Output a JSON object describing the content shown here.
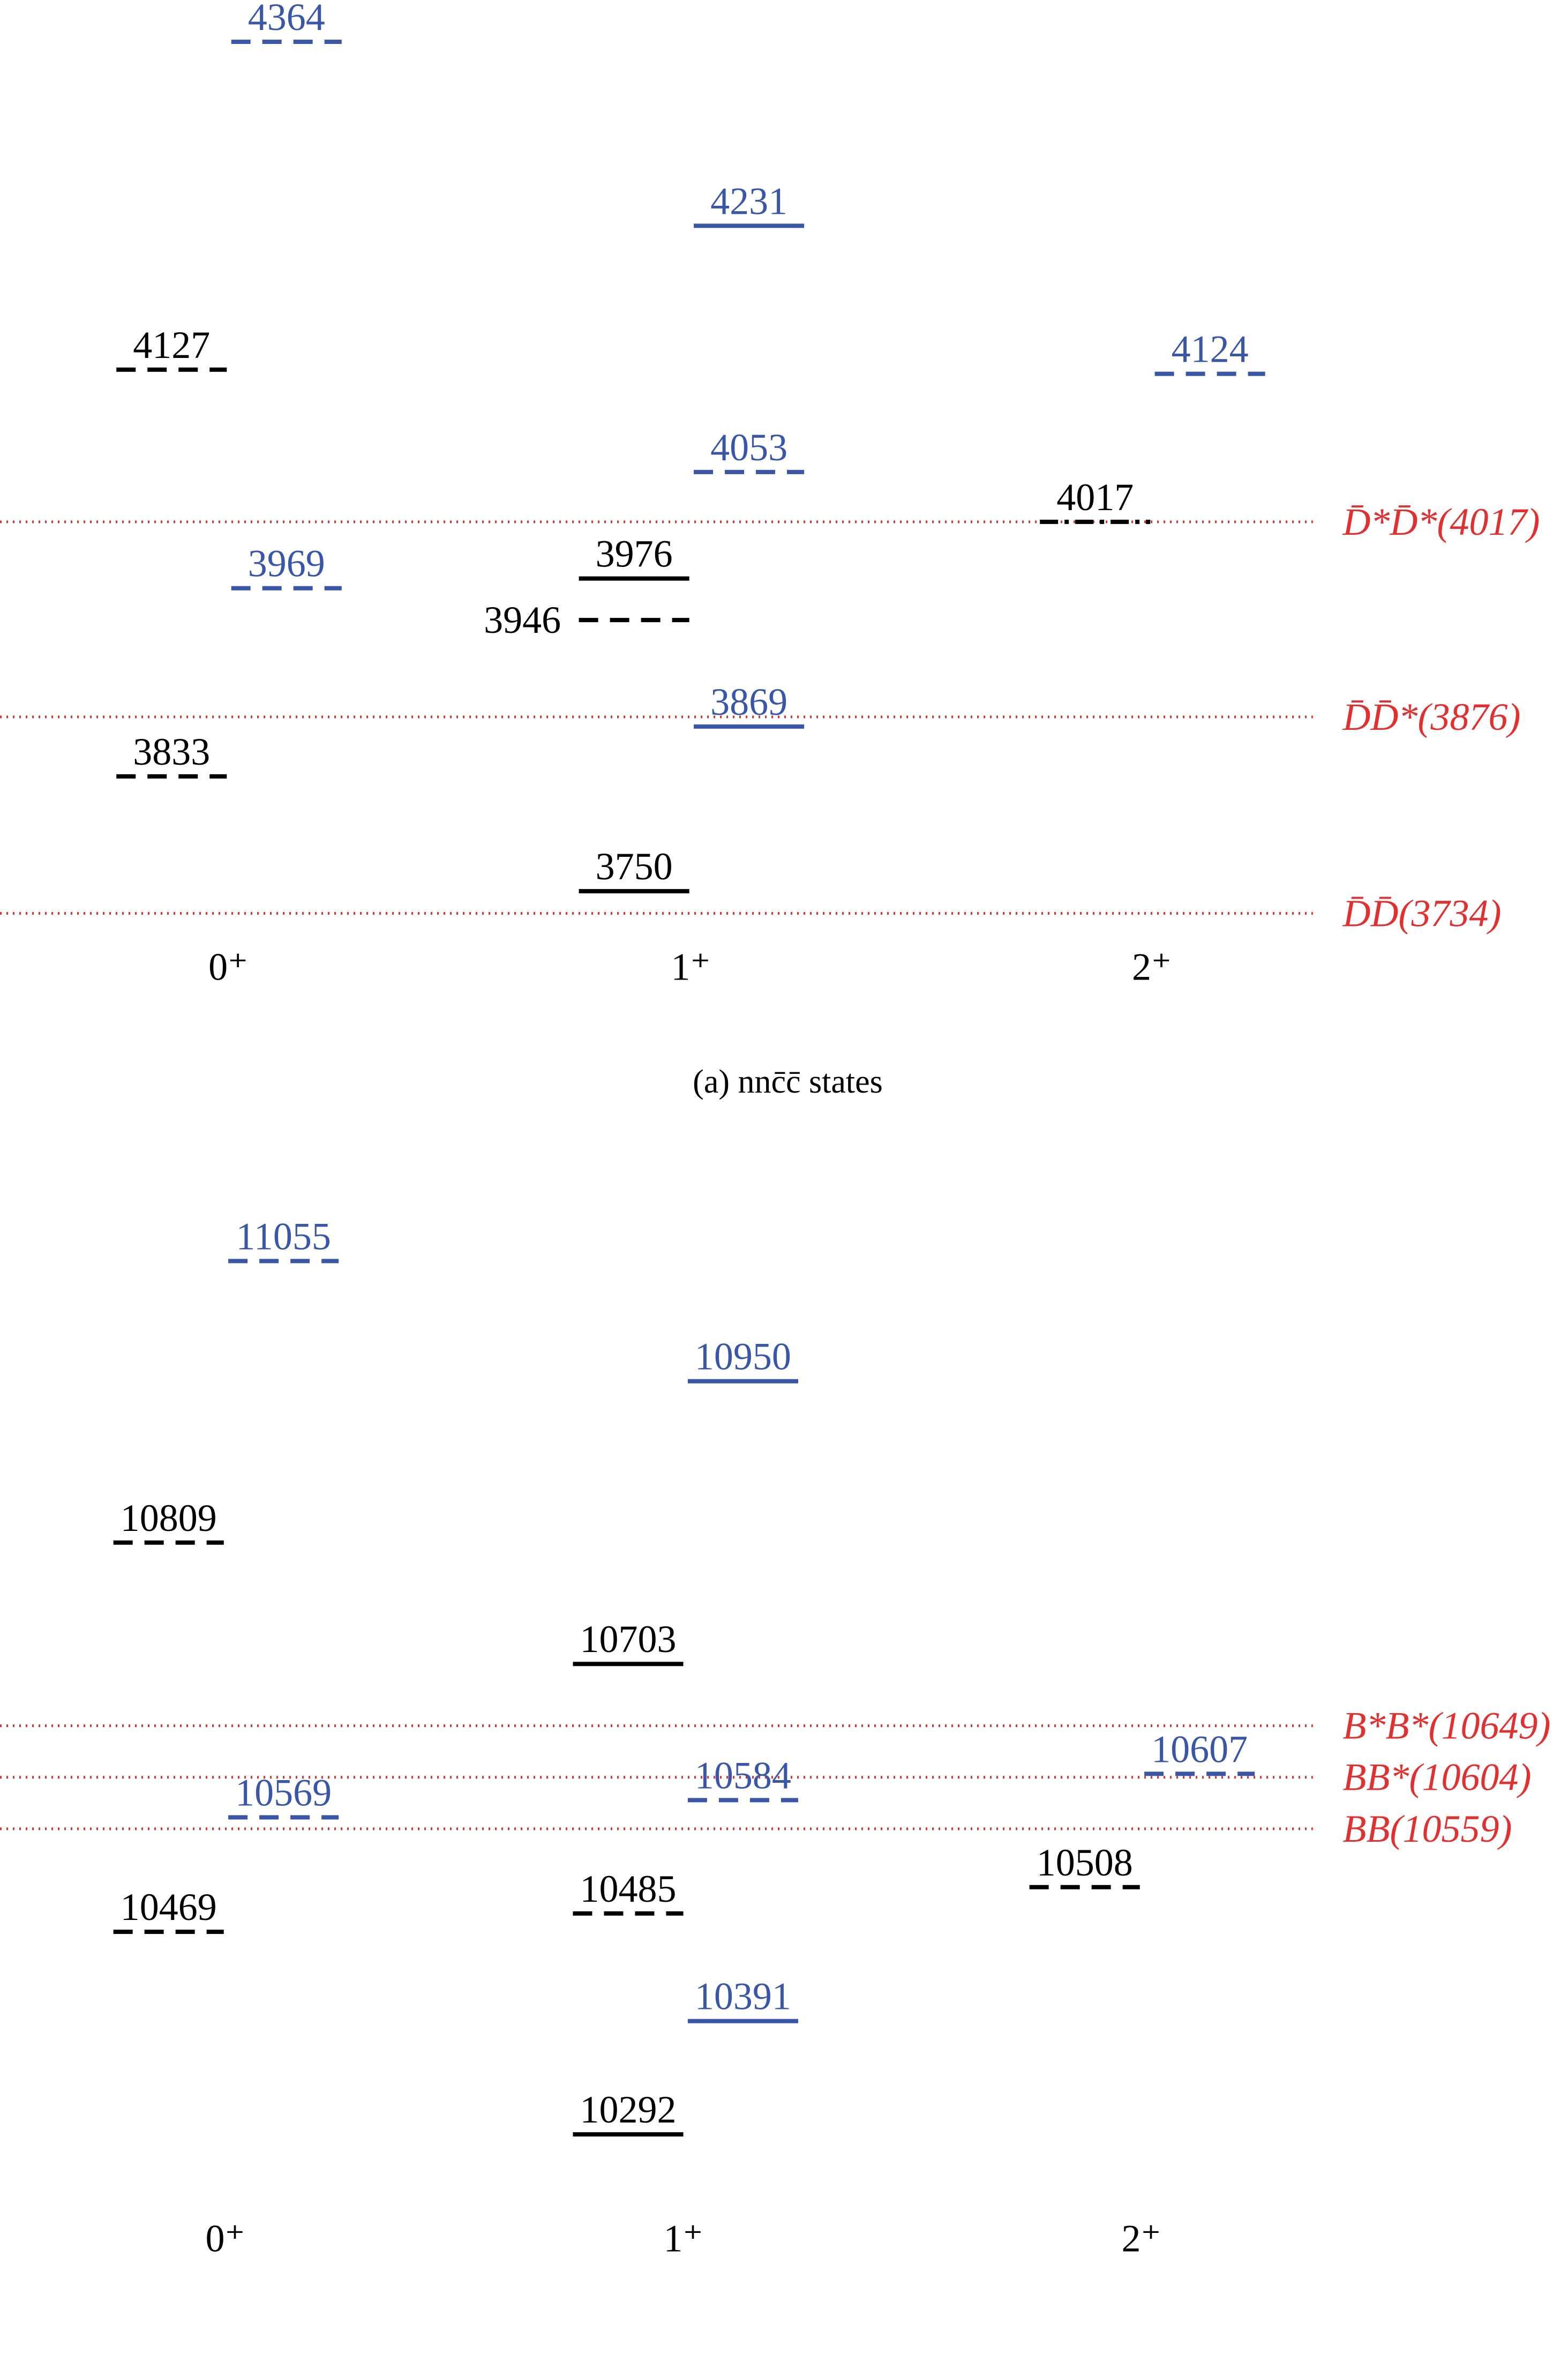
{
  "panels": [
    {
      "caption": "(a) nnc̄c̄ states",
      "columns": [
        {
          "label": "0⁺",
          "levels": [
            {
              "value": 4364,
              "color": "#3a56a8",
              "style": "dashed"
            },
            {
              "value": 4127,
              "color": "#000000",
              "style": "dashed"
            },
            {
              "value": 3969,
              "color": "#3a56a8",
              "style": "dashed"
            },
            {
              "value": 3833,
              "color": "#000000",
              "style": "dashed"
            }
          ]
        },
        {
          "label": "1⁺",
          "levels": [
            {
              "value": 4231,
              "color": "#3a56a8",
              "style": "solid"
            },
            {
              "value": 4053,
              "color": "#3a56a8",
              "style": "dashed"
            },
            {
              "value": 3976,
              "color": "#000000",
              "style": "solid"
            },
            {
              "value": 3946,
              "color": "#000000",
              "style": "dashed"
            },
            {
              "value": 3869,
              "color": "#3a56a8",
              "style": "solid"
            },
            {
              "value": 3750,
              "color": "#000000",
              "style": "solid"
            }
          ]
        },
        {
          "label": "2⁺",
          "levels": [
            {
              "value": 4124,
              "color": "#3a56a8",
              "style": "dashed"
            },
            {
              "value": 4017,
              "color": "#000000",
              "style": "dashdot"
            }
          ]
        }
      ],
      "thresholds": [
        {
          "label": "D̄*D̄*(4017)",
          "value": 4017,
          "color": "#e03030"
        },
        {
          "label": "D̄D̄*(3876)",
          "value": 3876,
          "color": "#e03030"
        },
        {
          "label": "D̄D̄(3734)",
          "value": 3734,
          "color": "#e03030"
        }
      ]
    },
    {
      "columns": [
        {
          "label": "0⁺",
          "levels": [
            {
              "value": 11055,
              "color": "#3a56a8",
              "style": "dashed"
            },
            {
              "value": 10809,
              "color": "#000000",
              "style": "dashed"
            },
            {
              "value": 10569,
              "color": "#3a56a8",
              "style": "dashed"
            },
            {
              "value": 10469,
              "color": "#000000",
              "style": "dashed"
            }
          ]
        },
        {
          "label": "1⁺",
          "levels": [
            {
              "value": 10950,
              "color": "#3a56a8",
              "style": "solid"
            },
            {
              "value": 10703,
              "color": "#000000",
              "style": "solid"
            },
            {
              "value": 10584,
              "color": "#3a56a8",
              "style": "dashed"
            },
            {
              "value": 10485,
              "color": "#000000",
              "style": "dashed"
            },
            {
              "value": 10391,
              "color": "#3a56a8",
              "style": "solid"
            },
            {
              "value": 10292,
              "color": "#000000",
              "style": "solid"
            }
          ]
        },
        {
          "label": "2⁺",
          "levels": [
            {
              "value": 10607,
              "color": "#3a56a8",
              "style": "dashed"
            },
            {
              "value": 10508,
              "color": "#000000",
              "style": "dashed"
            }
          ]
        }
      ],
      "thresholds": [
        {
          "label": "B*B*(10649)",
          "value": 10649,
          "color": "#e03030"
        },
        {
          "label": "BB*(10604)",
          "value": 10604,
          "color": "#e03030"
        },
        {
          "label": "BB(10559)",
          "value": 10559,
          "color": "#e03030"
        }
      ]
    }
  ]
}
